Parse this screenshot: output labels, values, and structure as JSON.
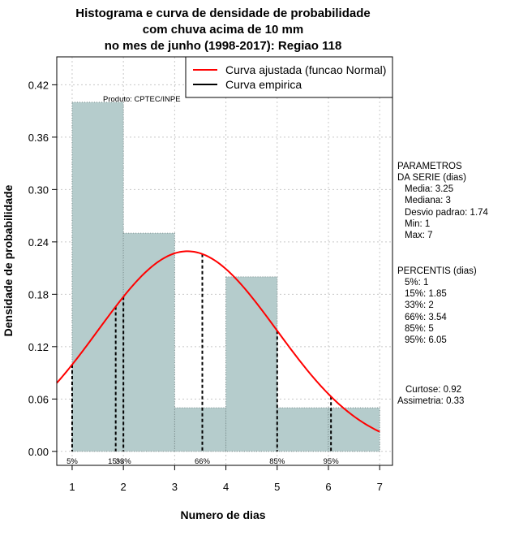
{
  "chart_data": {
    "type": "bar",
    "title_lines": [
      "Histograma e curva de densidade de probabilidade",
      "com chuva acima de 10 mm",
      "no mes de junho (1998-2017): Regiao 118"
    ],
    "xlabel": "Numero de dias",
    "ylabel": "Densidade de probabilidade",
    "xlim": [
      0.7,
      7.25
    ],
    "ylim": [
      -0.016,
      0.452
    ],
    "x_ticks": [
      1,
      2,
      3,
      4,
      5,
      6,
      7
    ],
    "y_ticks": [
      0.0,
      0.06,
      0.12,
      0.18,
      0.24,
      0.3,
      0.36,
      0.42
    ],
    "y_tick_labels": [
      "0.00",
      "0.06",
      "0.12",
      "0.18",
      "0.24",
      "0.30",
      "0.36",
      "0.42"
    ],
    "grid": true,
    "histogram": {
      "bin_edges": [
        1,
        2,
        3,
        4,
        5,
        6,
        7
      ],
      "densities": [
        0.4,
        0.25,
        0.05,
        0.2,
        0.05,
        0.05
      ],
      "fill_color": "#b5cccc"
    },
    "normal_fit": {
      "mean": 3.25,
      "sd": 1.74,
      "color": "#ff0000"
    },
    "percentile_markers": [
      {
        "label": "5%",
        "x": 1.0
      },
      {
        "label": "15%",
        "x": 1.85
      },
      {
        "label": "33%",
        "x": 2.0
      },
      {
        "label": "66%",
        "x": 3.54
      },
      {
        "label": "85%",
        "x": 5.0
      },
      {
        "label": "95%",
        "x": 6.05
      }
    ],
    "legend": {
      "position": "top-right",
      "entries": [
        {
          "label": "Curva ajustada (funcao Normal)",
          "color": "#ff0000"
        },
        {
          "label": "Curva empirica",
          "color": "#000000"
        }
      ]
    },
    "product_label": "Produto: CPTEC/INPE",
    "parametros": {
      "heading": [
        "PARAMETROS",
        "DA SERIE (dias)"
      ],
      "lines": [
        "Media: 3.25",
        "Mediana: 3",
        "Desvio padrao: 1.74",
        "Min: 1",
        "Max: 7"
      ]
    },
    "percentis": {
      "heading": "PERCENTIS (dias)",
      "lines": [
        "5%: 1",
        "15%: 1.85",
        "33%: 2",
        "66%: 3.54",
        "85%: 5",
        "95%: 6.05"
      ]
    },
    "shape": {
      "lines": [
        "Curtose: 0.92",
        "Assimetria: 0.33"
      ]
    }
  }
}
